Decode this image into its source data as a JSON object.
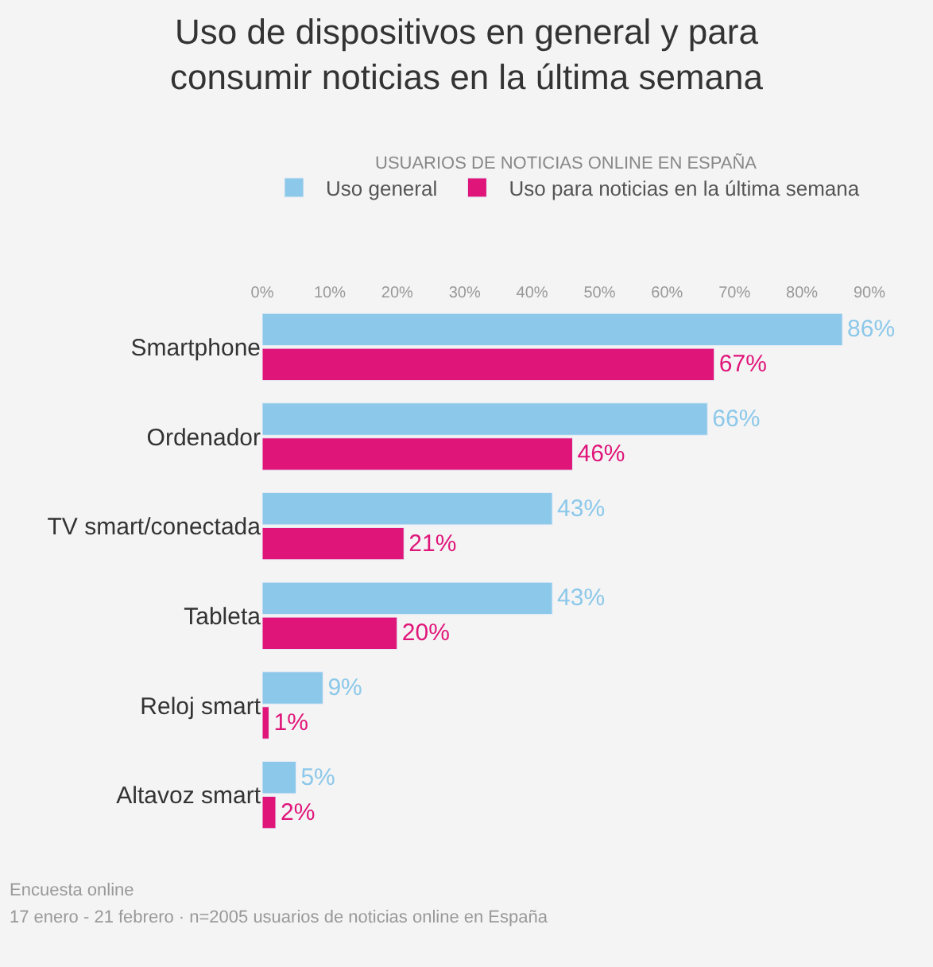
{
  "chart_data": {
    "type": "bar",
    "orientation": "horizontal",
    "title": "Uso de dispositivos en general y para consumir noticias en la última semana",
    "subtitle": "USUARIOS DE NOTICIAS ONLINE EN ESPAÑA",
    "categories": [
      "Smartphone",
      "Ordenador",
      "TV smart/conectada",
      "Tableta",
      "Reloj smart",
      "Altavoz smart"
    ],
    "series": [
      {
        "name": "Uso general",
        "color": "#8cc8ea",
        "values": [
          86,
          66,
          43,
          43,
          9,
          5
        ],
        "value_labels": [
          "86%",
          "66%",
          "43%",
          "43%",
          "9%",
          "5%"
        ]
      },
      {
        "name": "Uso para noticias en la última semana",
        "color": "#e0157a",
        "values": [
          67,
          46,
          21,
          20,
          1,
          2
        ],
        "value_labels": [
          "67%",
          "46%",
          "21%",
          "20%",
          "1%",
          "2%"
        ]
      }
    ],
    "xlim": [
      0,
      90
    ],
    "xticks": [
      {
        "value": 0,
        "label": "0%"
      },
      {
        "value": 10,
        "label": "10%"
      },
      {
        "value": 20,
        "label": "20%"
      },
      {
        "value": 30,
        "label": "30%"
      },
      {
        "value": 40,
        "label": "40%"
      },
      {
        "value": 50,
        "label": "50%"
      },
      {
        "value": 60,
        "label": "60%"
      },
      {
        "value": 70,
        "label": "70%"
      },
      {
        "value": 80,
        "label": "80%"
      },
      {
        "value": 90,
        "label": "90%"
      }
    ],
    "grid": false,
    "legend": "top",
    "annotations": [
      "Encuesta online",
      "17 enero - 21 febrero · n=2005 usuarios de noticias online en España"
    ]
  }
}
